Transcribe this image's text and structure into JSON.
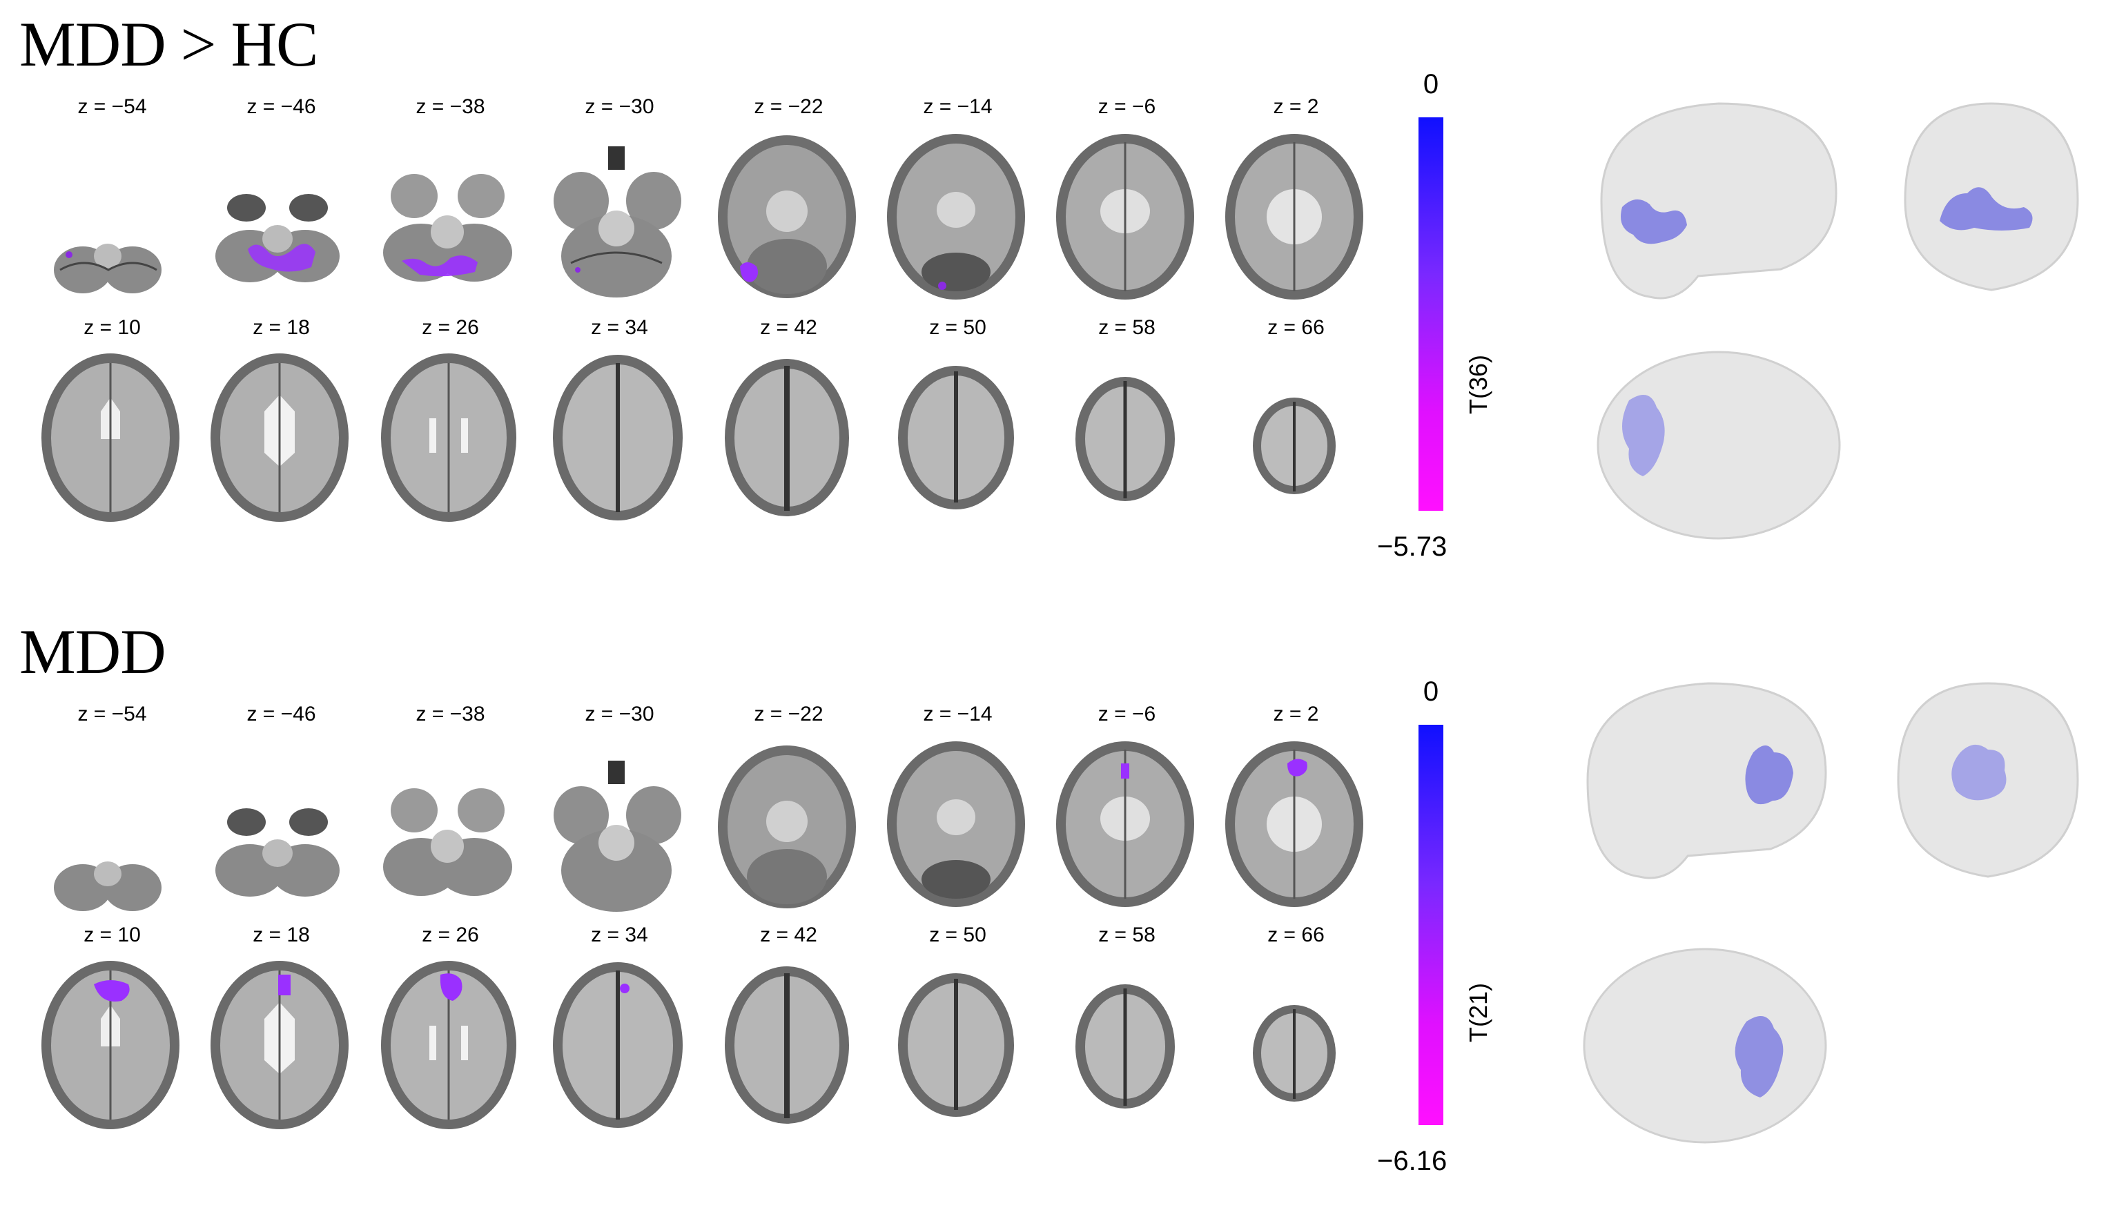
{
  "panels": [
    {
      "id": "mdd-vs-hc",
      "title": "MDD > HC",
      "colorbar": {
        "max_label": "0",
        "min_label": "−5.73",
        "stat_label": "T(36)",
        "color_top": "#1010ff",
        "color_bottom": "#ff10ff"
      },
      "row1": [
        "z = −54",
        "z = −46",
        "z = −38",
        "z = −30",
        "z = −22",
        "z = −14",
        "z = −6",
        "z = 2"
      ],
      "row2": [
        "z = 10",
        "z = 18",
        "z = 26",
        "z = 34",
        "z = 42",
        "z = 50",
        "z = 58",
        "z = 66"
      ]
    },
    {
      "id": "mdd",
      "title": "MDD",
      "colorbar": {
        "max_label": "0",
        "min_label": "−6.16",
        "stat_label": "T(21)",
        "color_top": "#1010ff",
        "color_bottom": "#ff10ff"
      },
      "row1": [
        "z = −54",
        "z = −46",
        "z = −38",
        "z = −30",
        "z = −22",
        "z = −14",
        "z = −6",
        "z = 2"
      ],
      "row2": [
        "z = 10",
        "z = 18",
        "z = 26",
        "z = 34",
        "z = 42",
        "z = 50",
        "z = 58",
        "z = 66"
      ]
    }
  ],
  "glass_brain_views": [
    "sagittal-view",
    "coronal-view",
    "axial-view"
  ],
  "blob_color": "#8a2be2",
  "glass_cluster_color": "#6b6be0"
}
